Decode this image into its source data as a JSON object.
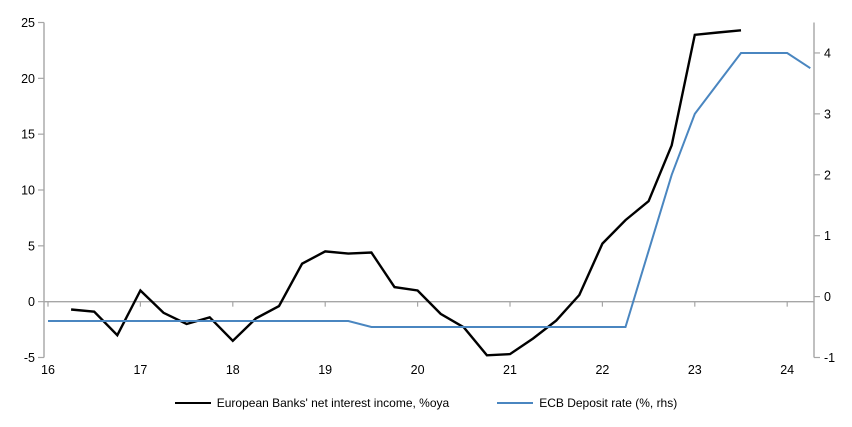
{
  "chart_data": {
    "type": "line",
    "title": "",
    "xlabel": "",
    "ylabel_left": "",
    "ylabel_right": "",
    "grid": false,
    "legend_position": "bottom",
    "background_color": "#ffffff",
    "axis_color": "#a6a6a6",
    "zero_line": {
      "present": true,
      "at_left_value": 0,
      "color": "#a6a6a6"
    },
    "x_axis": {
      "ticks": [
        16,
        17,
        18,
        19,
        20,
        21,
        22,
        23,
        24
      ],
      "tick_labels": [
        "16",
        "17",
        "18",
        "19",
        "20",
        "21",
        "22",
        "23",
        "24"
      ],
      "range_years": [
        16,
        24.3
      ]
    },
    "left_axis": {
      "min": -5,
      "max": 25,
      "ticks": [
        25,
        20,
        15,
        10,
        5,
        0,
        -5
      ],
      "tick_labels": [
        "25",
        "20",
        "15",
        "10",
        "5",
        "0",
        "-5"
      ]
    },
    "right_axis": {
      "min": -1,
      "max": 4.5,
      "ticks": [
        4,
        3,
        2,
        1,
        0,
        -1
      ],
      "tick_labels": [
        "4",
        "3",
        "2",
        "1",
        "0",
        "-1"
      ]
    },
    "series": [
      {
        "name": "European Banks' net interest income, %oya",
        "axis": "left",
        "color": "#000000",
        "stroke_width": 2.4,
        "x": [
          16.25,
          16.5,
          16.75,
          17.0,
          17.25,
          17.5,
          17.75,
          18.0,
          18.25,
          18.5,
          18.75,
          19.0,
          19.25,
          19.5,
          19.75,
          20.0,
          20.25,
          20.5,
          20.75,
          21.0,
          21.25,
          21.5,
          21.75,
          22.0,
          22.25,
          22.5,
          22.75,
          23.0,
          23.25,
          23.5
        ],
        "values": [
          -0.7,
          -0.9,
          -3.0,
          1.0,
          -1.0,
          -2.0,
          -1.4,
          -3.5,
          -1.5,
          -0.4,
          3.4,
          4.5,
          4.3,
          4.4,
          1.3,
          1.0,
          -1.1,
          -2.3,
          -4.8,
          -4.7,
          -3.3,
          -1.7,
          0.6,
          5.2,
          7.3,
          9.0,
          14.0,
          23.9,
          24.1,
          24.3
        ]
      },
      {
        "name": "ECB Deposit rate (%, rhs)",
        "axis": "right",
        "color": "#4a86c0",
        "stroke_width": 2,
        "x": [
          16.0,
          16.25,
          16.5,
          16.75,
          17.0,
          17.25,
          17.5,
          17.75,
          18.0,
          18.25,
          18.5,
          18.75,
          19.0,
          19.25,
          19.5,
          19.75,
          20.0,
          20.25,
          20.5,
          20.75,
          21.0,
          21.25,
          21.5,
          21.75,
          22.0,
          22.25,
          22.5,
          22.75,
          23.0,
          23.25,
          23.5,
          23.75,
          24.0,
          24.25
        ],
        "values": [
          -0.4,
          -0.4,
          -0.4,
          -0.4,
          -0.4,
          -0.4,
          -0.4,
          -0.4,
          -0.4,
          -0.4,
          -0.4,
          -0.4,
          -0.4,
          -0.4,
          -0.5,
          -0.5,
          -0.5,
          -0.5,
          -0.5,
          -0.5,
          -0.5,
          -0.5,
          -0.5,
          -0.5,
          -0.5,
          -0.5,
          0.75,
          2.0,
          3.0,
          3.5,
          4.0,
          4.0,
          4.0,
          3.75
        ]
      }
    ]
  },
  "legend": {
    "nii_label": "European Banks' net interest income, %oya",
    "ecb_label": "ECB Deposit rate (%, rhs)"
  },
  "colors": {
    "nii_line": "#000000",
    "ecb_line": "#4a86c0",
    "axis": "#a6a6a6",
    "text": "#000000",
    "background": "#ffffff"
  }
}
